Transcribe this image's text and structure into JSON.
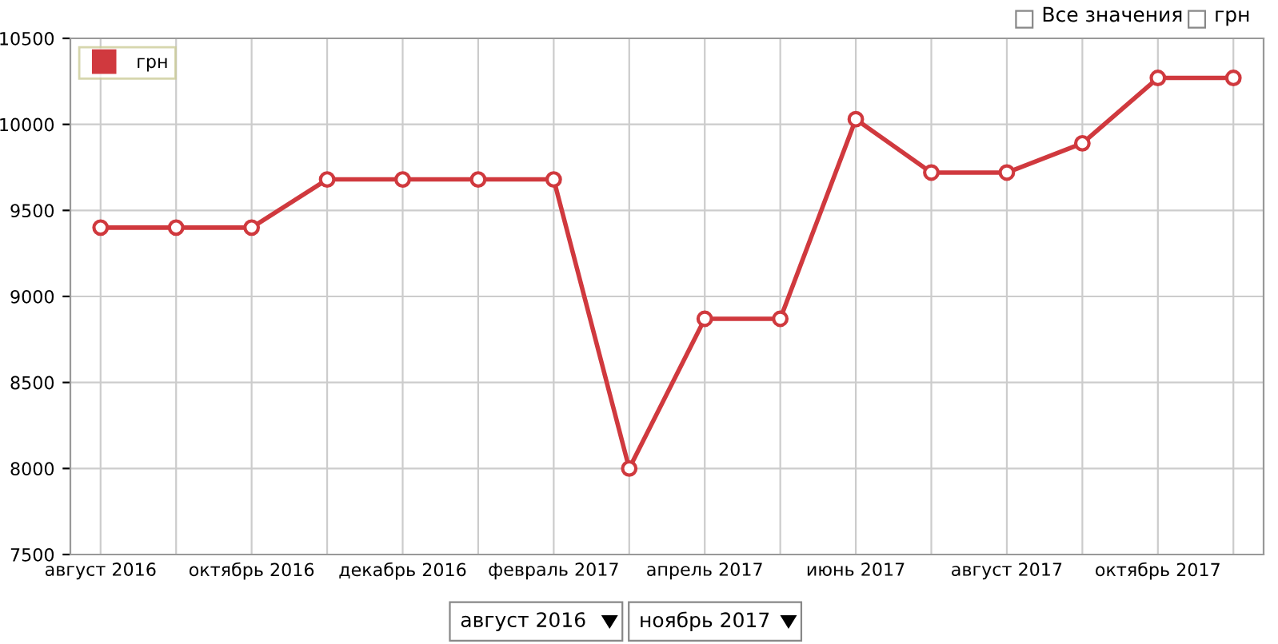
{
  "chart_data": {
    "type": "line",
    "categories": [
      "август 2016",
      null,
      "октябрь 2016",
      null,
      "декабрь 2016",
      null,
      "февраль 2017",
      null,
      "апрель 2017",
      null,
      "июнь 2017",
      null,
      "август 2017",
      null,
      "октябрь 2017",
      null
    ],
    "series": [
      {
        "name": "грн",
        "color": "#d0393e",
        "values": [
          9400,
          9400,
          9400,
          9680,
          9680,
          9680,
          9680,
          8000,
          8870,
          8870,
          10030,
          9720,
          9720,
          9890,
          10270,
          10270
        ]
      }
    ],
    "ylim": [
      7500,
      10500
    ],
    "yticks": [
      7500,
      8000,
      8500,
      9000,
      9500,
      10000,
      10500
    ],
    "grid": true,
    "legend": "top left",
    "marker": "circle",
    "line_style": "solid",
    "annotations": [
      "Все значения",
      "грн",
      "август 2016",
      "ноябрь 2017"
    ]
  }
}
